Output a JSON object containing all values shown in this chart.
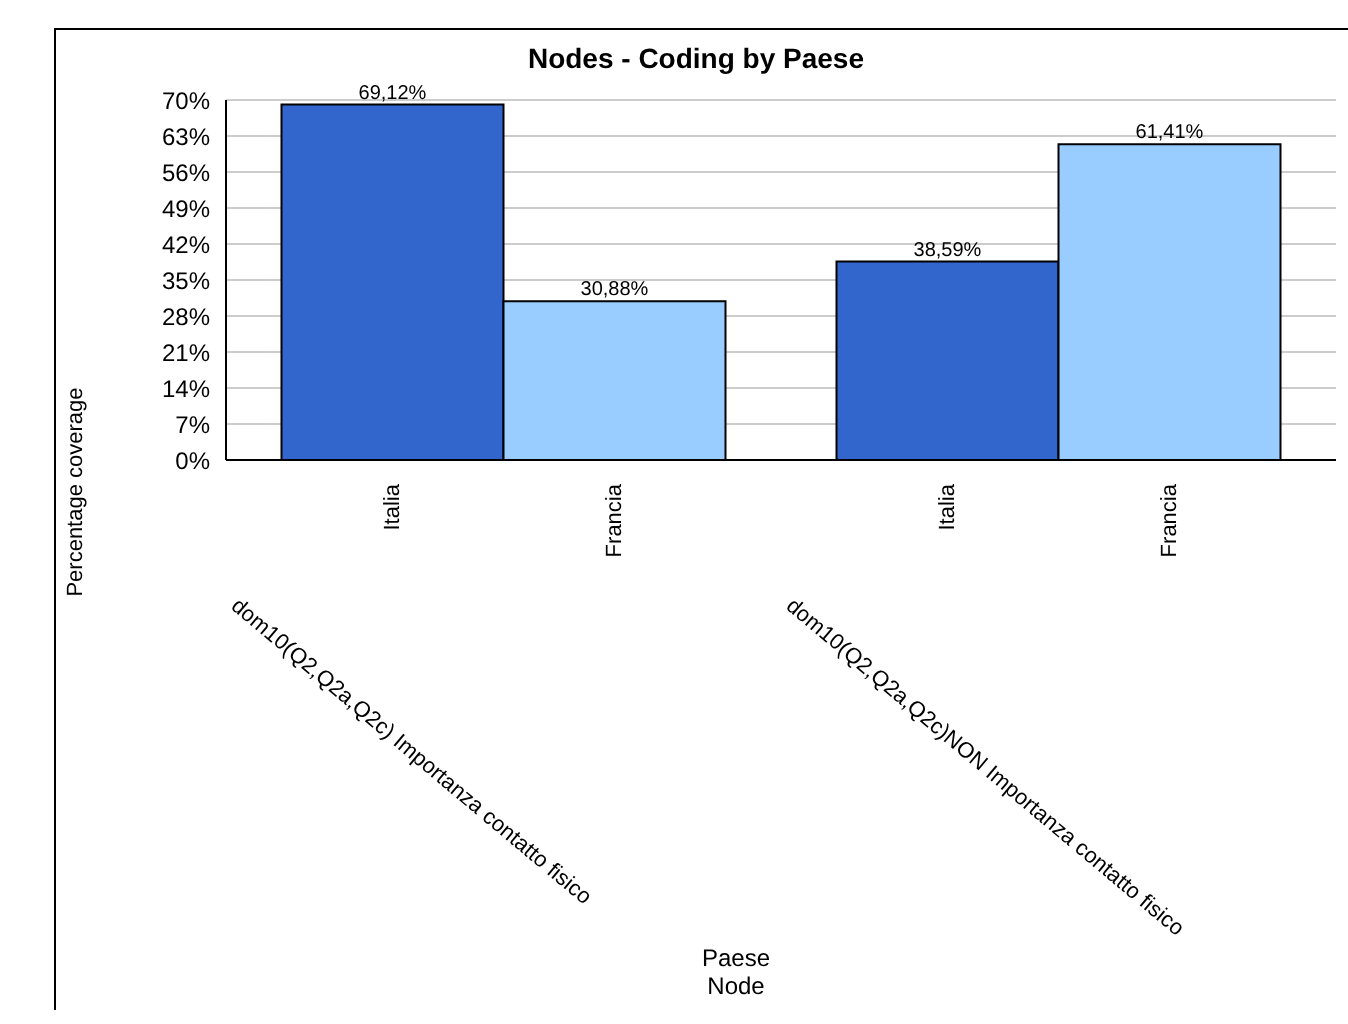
{
  "chart_data": {
    "type": "bar",
    "title": "Nodes - Coding by Paese",
    "ylabel": "Percentage coverage",
    "xlabel": "Paese",
    "annotations": [
      "Node"
    ],
    "categories": [
      "dom10(Q2,Q2a,Q2c) Importanza contatto fisico",
      "dom10(Q2,Q2a,Q2c)NON Importanza contatto fisico"
    ],
    "series": [
      {
        "name": "Italia",
        "color": "#3366cc",
        "values": [
          69.12,
          38.59
        ],
        "value_labels": [
          "69,12%",
          "38,59%"
        ]
      },
      {
        "name": "Francia",
        "color": "#99ccff",
        "values": [
          30.88,
          61.41
        ],
        "value_labels": [
          "30,88%",
          "61,41%"
        ]
      }
    ],
    "ylim": [
      0,
      70
    ],
    "yticks": [
      {
        "value": 0,
        "label": "0%"
      },
      {
        "value": 7,
        "label": "7%"
      },
      {
        "value": 14,
        "label": "14%"
      },
      {
        "value": 21,
        "label": "21%"
      },
      {
        "value": 28,
        "label": "28%"
      },
      {
        "value": 35,
        "label": "35%"
      },
      {
        "value": 42,
        "label": "42%"
      },
      {
        "value": 49,
        "label": "49%"
      },
      {
        "value": 56,
        "label": "56%"
      },
      {
        "value": 63,
        "label": "63%"
      },
      {
        "value": 70,
        "label": "70%"
      }
    ],
    "grid": "y",
    "legend": false
  }
}
